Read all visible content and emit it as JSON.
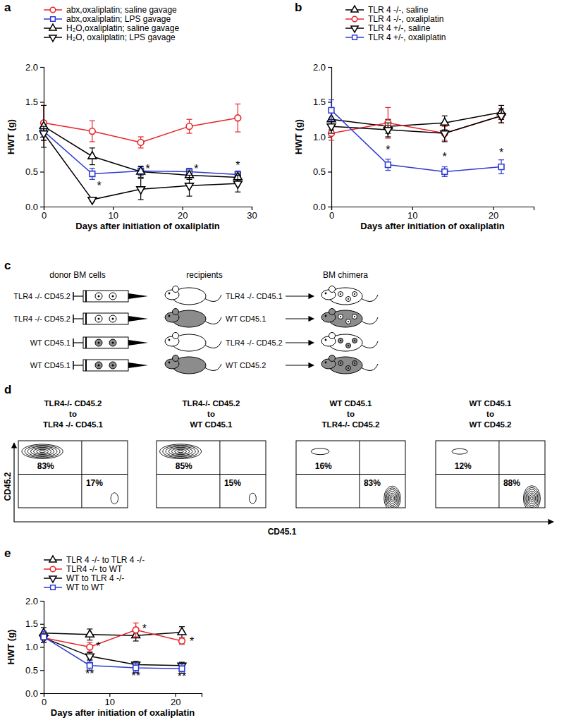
{
  "chart_data": [
    {
      "type": "line",
      "title": "a",
      "xlabel": "Days after initiation of oxaliplatin",
      "ylabel": "HWT (g)",
      "x": [
        0,
        7,
        14,
        21,
        28
      ],
      "xlim": [
        0,
        30
      ],
      "xticks": [
        0,
        10,
        20,
        30
      ],
      "ylim": [
        0,
        2
      ],
      "yticks": [
        {
          "value": 0,
          "label": "0.0"
        },
        0.5,
        {
          "value": 1,
          "label": "1.0"
        },
        1.5,
        {
          "value": 2,
          "label": "2.0"
        }
      ],
      "legend": "top",
      "series": [
        {
          "name": "abx,oxaliplatin; saline gavage",
          "color": "#e8242a",
          "marker": "circle",
          "line_style": "solid",
          "values": [
            1.2,
            1.08,
            0.92,
            1.15,
            1.27
          ],
          "errors": [
            0.25,
            0.15,
            0.08,
            0.1,
            0.2
          ]
        },
        {
          "name": "abx,oxaliplatin; LPS gavage",
          "color": "#2f3bd1",
          "marker": "square",
          "line_style": "solid",
          "values": [
            1.08,
            0.47,
            0.51,
            0.5,
            0.46
          ],
          "errors": [
            0.08,
            0.08,
            0.06,
            0.05,
            0.05
          ]
        },
        {
          "name": "H₂O,oxaliplatin; saline gavage",
          "color": "#000000",
          "marker": "triangle-up",
          "line_style": "solid",
          "values": [
            1.15,
            0.72,
            0.5,
            0.45,
            0.42
          ],
          "errors": [
            0.3,
            0.12,
            0.08,
            0.06,
            0.05
          ]
        },
        {
          "name": "H₂O, oxaliplatin; LPS gavage",
          "color": "#000000",
          "marker": "triangle-down",
          "line_style": "solid",
          "values": [
            1.05,
            0.1,
            0.25,
            0.3,
            0.33
          ],
          "errors": [
            0.1,
            0.02,
            0.15,
            0.15,
            0.12
          ]
        }
      ],
      "annotations": [
        {
          "text": "*",
          "x": 8,
          "y": 0.3
        },
        {
          "text": "*",
          "x": 15,
          "y": 0.55
        },
        {
          "text": "*",
          "x": 22,
          "y": 0.55
        },
        {
          "text": "*",
          "x": 28,
          "y": 0.6
        }
      ]
    },
    {
      "type": "line",
      "title": "b",
      "xlabel": "Days after initiation of oxaliplatin",
      "ylabel": "HWT (g)",
      "x": [
        0,
        7,
        14,
        21
      ],
      "xlim": [
        0,
        25
      ],
      "xticks": [
        0,
        10,
        20
      ],
      "ylim": [
        0,
        2
      ],
      "yticks": [
        {
          "value": 0,
          "label": "0.0"
        },
        0.5,
        {
          "value": 1,
          "label": "1.0"
        },
        1.5,
        {
          "value": 2,
          "label": "2.0"
        }
      ],
      "legend": "top",
      "series": [
        {
          "name": "TLR 4 -/-, saline",
          "color": "#000000",
          "marker": "triangle-up",
          "line_style": "solid",
          "values": [
            1.25,
            1.15,
            1.2,
            1.35
          ],
          "errors": [
            0.15,
            0.1,
            0.1,
            0.1
          ]
        },
        {
          "name": "TLR 4 -/-, oxaliplatin",
          "color": "#e8242a",
          "marker": "circle",
          "line_style": "solid",
          "values": [
            1.05,
            1.2,
            1.05,
            1.3
          ],
          "errors": [
            0.1,
            0.22,
            0.1,
            0.1
          ]
        },
        {
          "name": "TLR 4 +/-, saline",
          "color": "#000000",
          "marker": "triangle-down",
          "line_style": "solid",
          "values": [
            1.15,
            1.1,
            1.05,
            1.3
          ],
          "errors": [
            0.1,
            0.1,
            0.12,
            0.1
          ]
        },
        {
          "name": "TLR 4 +/-, oxaliplatin",
          "color": "#2f3bd1",
          "marker": "square",
          "line_style": "solid",
          "values": [
            1.38,
            0.6,
            0.5,
            0.57
          ],
          "errors": [
            0.15,
            0.08,
            0.07,
            0.1
          ]
        }
      ],
      "annotations": [
        {
          "text": "*",
          "x": 7,
          "y": 0.82
        },
        {
          "text": "*",
          "x": 14,
          "y": 0.72
        },
        {
          "text": "*",
          "x": 21,
          "y": 0.78
        }
      ]
    },
    {
      "type": "line",
      "title": "e",
      "xlabel": "Days after initiation of oxaliplatin",
      "ylabel": "HWT (g)",
      "x": [
        0,
        7,
        14,
        21
      ],
      "xlim": [
        0,
        24
      ],
      "xticks": [
        0,
        10,
        20
      ],
      "ylim": [
        0,
        2
      ],
      "yticks": [
        {
          "value": 0,
          "label": "0.0"
        },
        0.5,
        {
          "value": 1,
          "label": "1.0"
        },
        1.5,
        {
          "value": 2,
          "label": "2.0"
        }
      ],
      "legend": "top",
      "series": [
        {
          "name": "TLR 4 -/- to TLR 4 -/-",
          "color": "#000000",
          "marker": "triangle-up",
          "line_style": "solid",
          "values": [
            1.3,
            1.27,
            1.25,
            1.32
          ],
          "errors": [
            0.12,
            0.12,
            0.12,
            0.12
          ]
        },
        {
          "name": "TLR4 -/- to WT",
          "color": "#e8242a",
          "marker": "circle",
          "line_style": "solid",
          "values": [
            1.2,
            1.0,
            1.37,
            1.13
          ],
          "errors": [
            0.1,
            0.1,
            0.15,
            0.07
          ]
        },
        {
          "name": "WT to TLR 4 -/-",
          "color": "#000000",
          "marker": "triangle-down",
          "line_style": "solid",
          "values": [
            1.2,
            0.8,
            0.62,
            0.6
          ],
          "errors": [
            0.1,
            0.08,
            0.07,
            0.07
          ]
        },
        {
          "name": "WT to WT",
          "color": "#2f3bd1",
          "marker": "square",
          "line_style": "solid",
          "values": [
            1.22,
            0.6,
            0.55,
            0.53
          ],
          "errors": [
            0.12,
            0.1,
            0.1,
            0.1
          ]
        }
      ],
      "annotations": [
        {
          "text": "*",
          "x": 8.3,
          "y": 1.02
        },
        {
          "text": "*",
          "x": 15.3,
          "y": 1.4
        },
        {
          "text": "*",
          "x": 22.5,
          "y": 1.13
        },
        {
          "text": "**",
          "x": 7,
          "y": 0.42
        },
        {
          "text": "**",
          "x": 14,
          "y": 0.38
        },
        {
          "text": "**",
          "x": 21,
          "y": 0.37
        }
      ]
    }
  ],
  "diagram": {
    "title": "c",
    "headers": [
      "donor BM cells",
      "recipients",
      "BM chimera"
    ],
    "rows": [
      {
        "donor": "TLR4 -/- CD45.2",
        "recipient": "TLR4 -/- CD45.1",
        "donor_color": "#ffffff",
        "recipient_color": "#ffffff"
      },
      {
        "donor": "TLR4 -/- CD45.2",
        "recipient": "WT CD45.1",
        "donor_color": "#ffffff",
        "recipient_color": "#8c8c8c"
      },
      {
        "donor": "WT CD45.1",
        "recipient": "TLR4 -/- CD45.2",
        "donor_color": "#8c8c8c",
        "recipient_color": "#ffffff"
      },
      {
        "donor": "WT CD45.1",
        "recipient": "WT CD45.2",
        "donor_color": "#8c8c8c",
        "recipient_color": "#8c8c8c"
      }
    ]
  },
  "flow": {
    "title": "d",
    "xlabel": "CD45.1",
    "ylabel": "CD45.2",
    "plots": [
      {
        "title": [
          "TLR4-/- CD45.2",
          "to",
          "TLR4 -/- CD45.1"
        ],
        "values": [
          83,
          17
        ],
        "value_labels": [
          "83%",
          "17%"
        ]
      },
      {
        "title": [
          "TLR4-/- CD45.2",
          "to",
          "WT CD45.1"
        ],
        "values": [
          85,
          15
        ],
        "value_labels": [
          "85%",
          "15%"
        ]
      },
      {
        "title": [
          "WT CD45.1",
          "to",
          "TLR4-/- CD45.2"
        ],
        "values": [
          16,
          83
        ],
        "value_labels": [
          "16%",
          "83%"
        ]
      },
      {
        "title": [
          "WT CD45.1",
          "to",
          "WT CD45.2"
        ],
        "values": [
          12,
          88
        ],
        "value_labels": [
          "12%",
          "88%"
        ]
      }
    ]
  }
}
